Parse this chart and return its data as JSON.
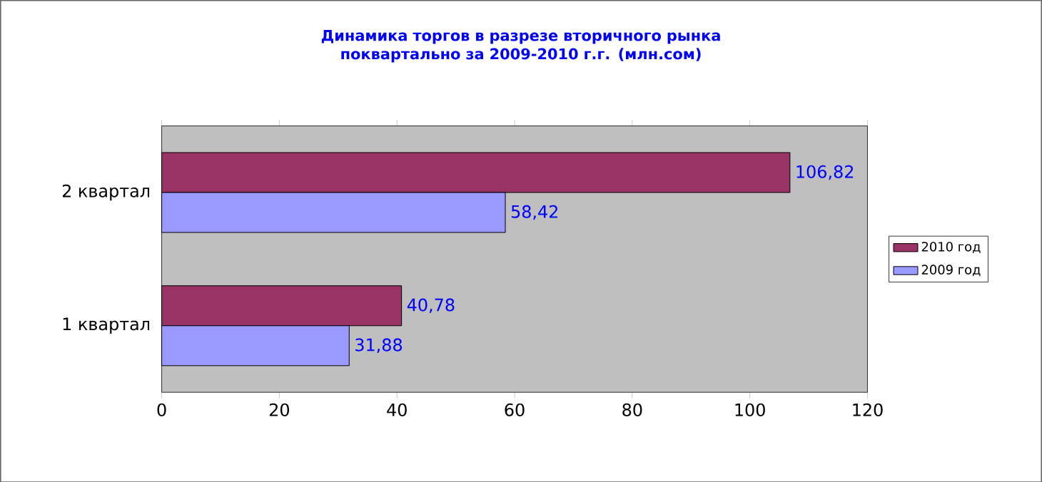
{
  "chart_data": {
    "type": "bar",
    "orientation": "horizontal",
    "title": "Динамика торгов в разрезе вторичного рынка поквартально за 2009-2010 г.г. (млн.сом)",
    "categories": [
      "2 квартал",
      "1 квартал"
    ],
    "series": [
      {
        "name": "2010 год",
        "color": "#993366",
        "values": [
          106.82,
          40.78
        ],
        "value_labels": [
          "106,82",
          "40,78"
        ]
      },
      {
        "name": "2009 год",
        "color": "#9999ff",
        "values": [
          58.42,
          31.88
        ],
        "value_labels": [
          "58,42",
          "31,88"
        ]
      }
    ],
    "xlim": [
      0,
      120
    ],
    "xticks": [
      0,
      20,
      40,
      60,
      80,
      100,
      120
    ],
    "legend": "right"
  }
}
